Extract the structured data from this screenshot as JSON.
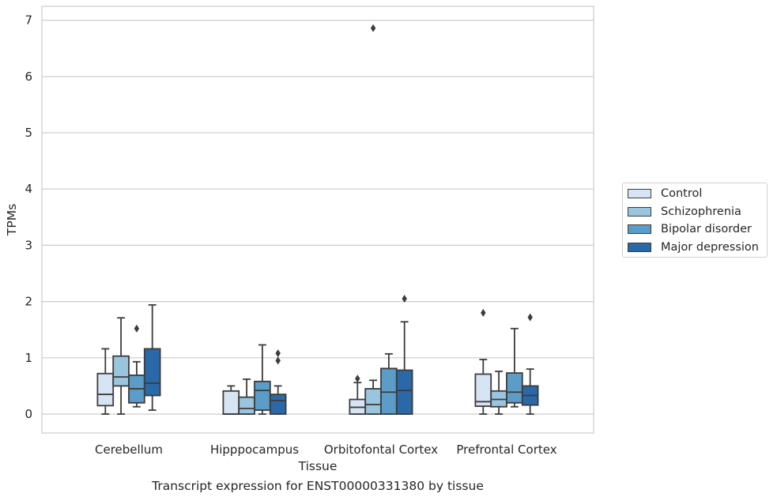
{
  "chart_data": {
    "type": "box",
    "xlabel": "Tissue",
    "ylabel": "TPMs",
    "caption": "Transcript expression for ENST00000331380 by tissue",
    "ylim": [
      -0.33,
      7.22
    ],
    "yticks": [
      0,
      1,
      2,
      3,
      4,
      5,
      6,
      7
    ],
    "grid": "horizontal",
    "legend_position": "right",
    "categories": [
      "Cerebellum",
      "Hipppocampus",
      "Orbitofontal Cortex",
      "Prefrontal Cortex"
    ],
    "series": [
      {
        "name": "Control",
        "color": "#d6e4f3",
        "boxes": [
          {
            "whislo": 0.0,
            "q1": 0.15,
            "med": 0.35,
            "q3": 0.72,
            "whishi": 1.16,
            "fliers": []
          },
          {
            "whislo": 0.0,
            "q1": 0.0,
            "med": 0.0,
            "q3": 0.41,
            "whishi": 0.5,
            "fliers": []
          },
          {
            "whislo": 0.0,
            "q1": 0.0,
            "med": 0.12,
            "q3": 0.26,
            "whishi": 0.56,
            "fliers": [
              0.63
            ]
          },
          {
            "whislo": 0.0,
            "q1": 0.14,
            "med": 0.22,
            "q3": 0.71,
            "whishi": 0.97,
            "fliers": [
              1.8
            ]
          }
        ]
      },
      {
        "name": "Schizophrenia",
        "color": "#9ac5df",
        "boxes": [
          {
            "whislo": 0.0,
            "q1": 0.5,
            "med": 0.66,
            "q3": 1.03,
            "whishi": 1.71,
            "fliers": []
          },
          {
            "whislo": 0.0,
            "q1": 0.0,
            "med": 0.1,
            "q3": 0.3,
            "whishi": 0.62,
            "fliers": []
          },
          {
            "whislo": 0.0,
            "q1": 0.0,
            "med": 0.17,
            "q3": 0.45,
            "whishi": 0.6,
            "fliers": [
              6.86
            ]
          },
          {
            "whislo": 0.0,
            "q1": 0.13,
            "med": 0.26,
            "q3": 0.41,
            "whishi": 0.76,
            "fliers": []
          }
        ]
      },
      {
        "name": "Bipolar disorder",
        "color": "#5b9cc8",
        "boxes": [
          {
            "whislo": 0.13,
            "q1": 0.2,
            "med": 0.45,
            "q3": 0.69,
            "whishi": 0.93,
            "fliers": [
              1.52
            ]
          },
          {
            "whislo": 0.0,
            "q1": 0.07,
            "med": 0.42,
            "q3": 0.58,
            "whishi": 1.23,
            "fliers": []
          },
          {
            "whislo": 0.0,
            "q1": 0.0,
            "med": 0.39,
            "q3": 0.81,
            "whishi": 1.07,
            "fliers": []
          },
          {
            "whislo": 0.13,
            "q1": 0.2,
            "med": 0.39,
            "q3": 0.73,
            "whishi": 1.52,
            "fliers": []
          }
        ]
      },
      {
        "name": "Major depression",
        "color": "#2a68a8",
        "boxes": [
          {
            "whislo": 0.07,
            "q1": 0.33,
            "med": 0.55,
            "q3": 1.16,
            "whishi": 1.94,
            "fliers": []
          },
          {
            "whislo": 0.0,
            "q1": 0.0,
            "med": 0.24,
            "q3": 0.35,
            "whishi": 0.5,
            "fliers": [
              0.95,
              1.08
            ]
          },
          {
            "whislo": 0.0,
            "q1": 0.0,
            "med": 0.42,
            "q3": 0.78,
            "whishi": 1.64,
            "fliers": [
              2.05
            ]
          },
          {
            "whislo": 0.0,
            "q1": 0.16,
            "med": 0.33,
            "q3": 0.5,
            "whishi": 0.8,
            "fliers": [
              1.72
            ]
          }
        ]
      }
    ]
  }
}
